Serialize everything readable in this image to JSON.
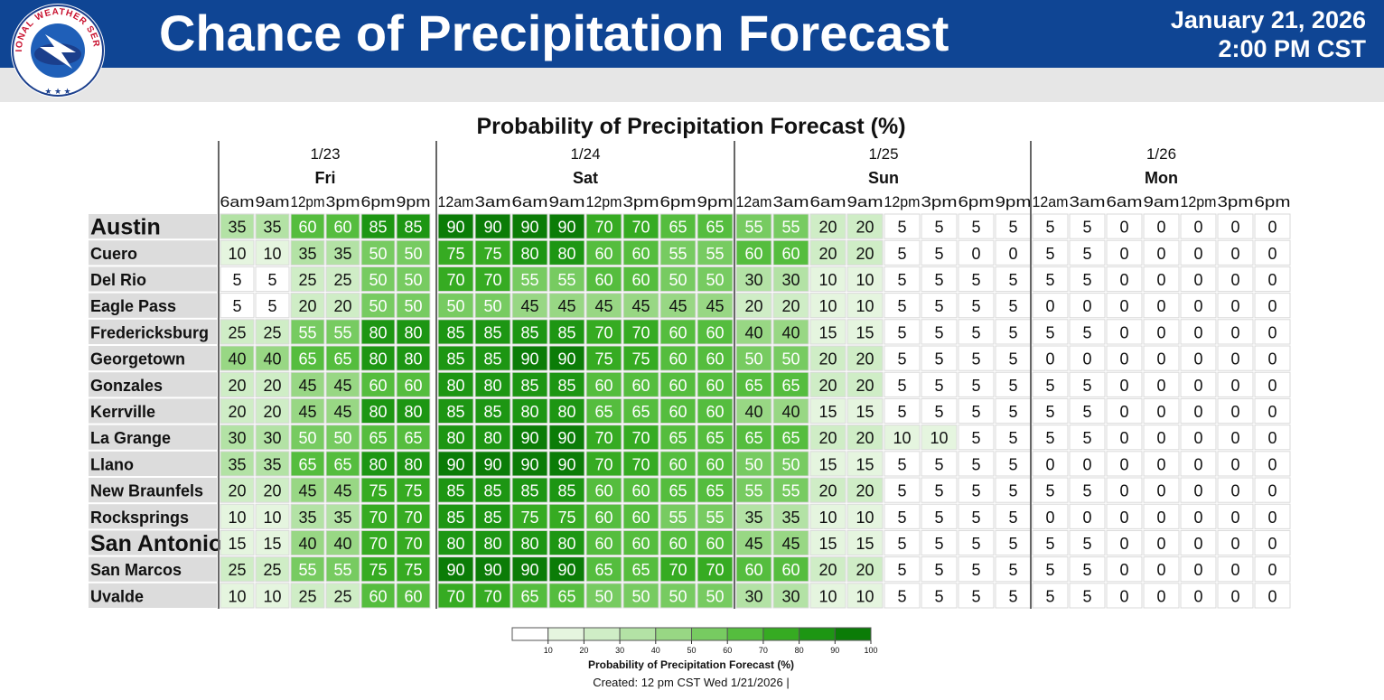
{
  "header": {
    "title": "Chance of Precipitation Forecast",
    "date": "January 21, 2026",
    "time": "2:00 PM CST",
    "logo_text": "NATIONAL WEATHER SERVICE"
  },
  "colors": {
    "banner": "#0f4594",
    "band": "#e6e6e6",
    "scale": [
      "#ffffff",
      "#e5f5df",
      "#cfedc6",
      "#b3e2a5",
      "#98d784",
      "#77cb61",
      "#55bd3e",
      "#36ab22",
      "#1d9613",
      "#0b7c07"
    ]
  },
  "chart_data": {
    "type": "heatmap",
    "title": "Probability of Precipitation Forecast (%)",
    "days": [
      {
        "date": "1/23",
        "name": "Fri",
        "times": [
          "6am",
          "9am",
          "12pm",
          "3pm",
          "6pm",
          "9pm"
        ]
      },
      {
        "date": "1/24",
        "name": "Sat",
        "times": [
          "12am",
          "3am",
          "6am",
          "9am",
          "12pm",
          "3pm",
          "6pm",
          "9pm"
        ]
      },
      {
        "date": "1/25",
        "name": "Sun",
        "times": [
          "12am",
          "3am",
          "6am",
          "9am",
          "12pm",
          "3pm",
          "6pm",
          "9pm"
        ]
      },
      {
        "date": "1/26",
        "name": "Mon",
        "times": [
          "12am",
          "3am",
          "6am",
          "9am",
          "12pm",
          "3pm",
          "6pm"
        ]
      }
    ],
    "rows": [
      {
        "city": "Austin",
        "major": true,
        "values": [
          35,
          35,
          60,
          60,
          85,
          85,
          90,
          90,
          90,
          90,
          70,
          70,
          65,
          65,
          55,
          55,
          20,
          20,
          5,
          5,
          5,
          5,
          5,
          5,
          0,
          0,
          0,
          0,
          0
        ]
      },
      {
        "city": "Cuero",
        "values": [
          10,
          10,
          35,
          35,
          50,
          50,
          75,
          75,
          80,
          80,
          60,
          60,
          55,
          55,
          60,
          60,
          20,
          20,
          5,
          5,
          0,
          0,
          5,
          5,
          0,
          0,
          0,
          0,
          0
        ]
      },
      {
        "city": "Del Rio",
        "values": [
          5,
          5,
          25,
          25,
          50,
          50,
          70,
          70,
          55,
          55,
          60,
          60,
          50,
          50,
          30,
          30,
          10,
          10,
          5,
          5,
          5,
          5,
          5,
          5,
          0,
          0,
          0,
          0,
          0
        ]
      },
      {
        "city": "Eagle Pass",
        "values": [
          5,
          5,
          20,
          20,
          50,
          50,
          50,
          50,
          45,
          45,
          45,
          45,
          45,
          45,
          20,
          20,
          10,
          10,
          5,
          5,
          5,
          5,
          0,
          0,
          0,
          0,
          0,
          0,
          0
        ]
      },
      {
        "city": "Fredericksburg",
        "values": [
          25,
          25,
          55,
          55,
          80,
          80,
          85,
          85,
          85,
          85,
          70,
          70,
          60,
          60,
          40,
          40,
          15,
          15,
          5,
          5,
          5,
          5,
          5,
          5,
          0,
          0,
          0,
          0,
          0
        ]
      },
      {
        "city": "Georgetown",
        "values": [
          40,
          40,
          65,
          65,
          80,
          80,
          85,
          85,
          90,
          90,
          75,
          75,
          60,
          60,
          50,
          50,
          20,
          20,
          5,
          5,
          5,
          5,
          0,
          0,
          0,
          0,
          0,
          0,
          0
        ]
      },
      {
        "city": "Gonzales",
        "values": [
          20,
          20,
          45,
          45,
          60,
          60,
          80,
          80,
          85,
          85,
          60,
          60,
          60,
          60,
          65,
          65,
          20,
          20,
          5,
          5,
          5,
          5,
          5,
          5,
          0,
          0,
          0,
          0,
          0
        ]
      },
      {
        "city": "Kerrville",
        "values": [
          20,
          20,
          45,
          45,
          80,
          80,
          85,
          85,
          80,
          80,
          65,
          65,
          60,
          60,
          40,
          40,
          15,
          15,
          5,
          5,
          5,
          5,
          5,
          5,
          0,
          0,
          0,
          0,
          0
        ]
      },
      {
        "city": "La Grange",
        "values": [
          30,
          30,
          50,
          50,
          65,
          65,
          80,
          80,
          90,
          90,
          70,
          70,
          65,
          65,
          65,
          65,
          20,
          20,
          10,
          10,
          5,
          5,
          5,
          5,
          0,
          0,
          0,
          0,
          0
        ]
      },
      {
        "city": "Llano",
        "values": [
          35,
          35,
          65,
          65,
          80,
          80,
          90,
          90,
          90,
          90,
          70,
          70,
          60,
          60,
          50,
          50,
          15,
          15,
          5,
          5,
          5,
          5,
          0,
          0,
          0,
          0,
          0,
          0,
          0
        ]
      },
      {
        "city": "New Braunfels",
        "values": [
          20,
          20,
          45,
          45,
          75,
          75,
          85,
          85,
          85,
          85,
          60,
          60,
          65,
          65,
          55,
          55,
          20,
          20,
          5,
          5,
          5,
          5,
          5,
          5,
          0,
          0,
          0,
          0,
          0
        ]
      },
      {
        "city": "Rocksprings",
        "values": [
          10,
          10,
          35,
          35,
          70,
          70,
          85,
          85,
          75,
          75,
          60,
          60,
          55,
          55,
          35,
          35,
          10,
          10,
          5,
          5,
          5,
          5,
          0,
          0,
          0,
          0,
          0,
          0,
          0
        ]
      },
      {
        "city": "San Antonio",
        "major": true,
        "values": [
          15,
          15,
          40,
          40,
          70,
          70,
          80,
          80,
          80,
          80,
          60,
          60,
          60,
          60,
          45,
          45,
          15,
          15,
          5,
          5,
          5,
          5,
          5,
          5,
          0,
          0,
          0,
          0,
          0
        ]
      },
      {
        "city": "San Marcos",
        "values": [
          25,
          25,
          55,
          55,
          75,
          75,
          90,
          90,
          90,
          90,
          65,
          65,
          70,
          70,
          60,
          60,
          20,
          20,
          5,
          5,
          5,
          5,
          5,
          5,
          0,
          0,
          0,
          0,
          0
        ]
      },
      {
        "city": "Uvalde",
        "values": [
          10,
          10,
          25,
          25,
          60,
          60,
          70,
          70,
          65,
          65,
          50,
          50,
          50,
          50,
          30,
          30,
          10,
          10,
          5,
          5,
          5,
          5,
          5,
          5,
          0,
          0,
          0,
          0,
          0
        ]
      }
    ],
    "legend": {
      "ticks": [
        10,
        20,
        30,
        40,
        50,
        60,
        70,
        80,
        90,
        100
      ],
      "label": "Probability of Precipitation Forecast (%)",
      "created": "Created: 12 pm CST Wed 1/21/2026  |"
    }
  }
}
